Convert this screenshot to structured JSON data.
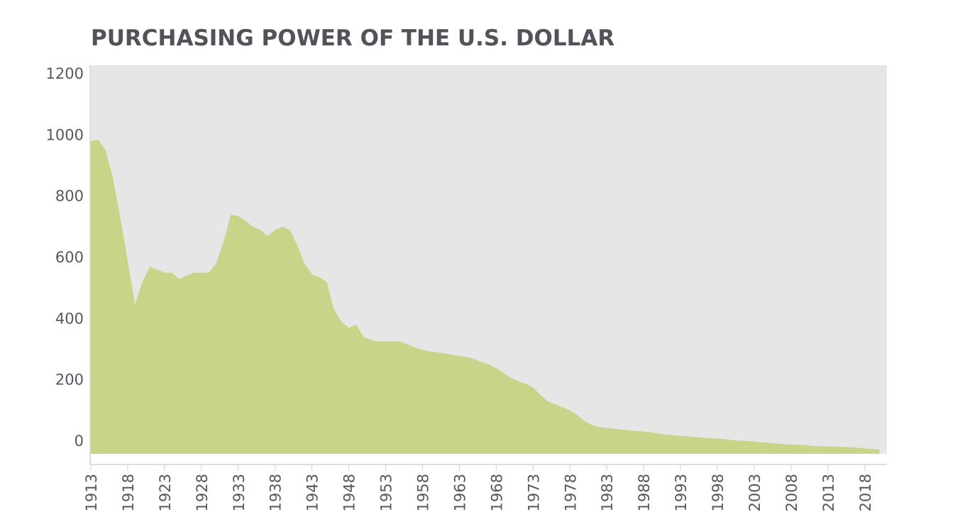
{
  "chart_data": {
    "type": "area",
    "title": "PURCHASING POWER OF THE U.S. DOLLAR",
    "color": "#c8d488",
    "x": [
      1913,
      1914,
      1915,
      1916,
      1917,
      1918,
      1919,
      1920,
      1921,
      1922,
      1923,
      1924,
      1925,
      1926,
      1927,
      1928,
      1929,
      1930,
      1931,
      1932,
      1933,
      1934,
      1935,
      1936,
      1937,
      1938,
      1939,
      1940,
      1941,
      1942,
      1943,
      1944,
      1945,
      1946,
      1947,
      1948,
      1949,
      1950,
      1951,
      1952,
      1953,
      1954,
      1955,
      1956,
      1957,
      1958,
      1959,
      1960,
      1961,
      1962,
      1963,
      1964,
      1965,
      1966,
      1967,
      1968,
      1969,
      1970,
      1971,
      1972,
      1973,
      1974,
      1975,
      1976,
      1977,
      1978,
      1979,
      1980,
      1981,
      1982,
      1983,
      1984,
      1985,
      1986,
      1987,
      1988,
      1989,
      1990,
      1991,
      1992,
      1993,
      1994,
      1995,
      1996,
      1997,
      1998,
      1999,
      2000,
      2001,
      2002,
      2003,
      2004,
      2005,
      2006,
      2007,
      2008,
      2009,
      2010,
      2011,
      2012,
      2013,
      2014,
      2015,
      2016,
      2017,
      2018,
      2019,
      2020
    ],
    "values": [
      980,
      985,
      950,
      860,
      730,
      590,
      445,
      520,
      570,
      560,
      550,
      550,
      530,
      540,
      550,
      550,
      550,
      580,
      650,
      740,
      735,
      720,
      700,
      690,
      670,
      690,
      700,
      690,
      640,
      580,
      545,
      535,
      520,
      430,
      390,
      370,
      380,
      340,
      330,
      325,
      325,
      325,
      325,
      315,
      305,
      298,
      293,
      290,
      286,
      282,
      278,
      274,
      268,
      258,
      250,
      238,
      222,
      206,
      195,
      187,
      175,
      150,
      130,
      120,
      110,
      100,
      85,
      65,
      52,
      45,
      43,
      40,
      37,
      35,
      33,
      31,
      28,
      24,
      21,
      19,
      17,
      15,
      13,
      11,
      9,
      8,
      6,
      3,
      1,
      0,
      -2,
      -4,
      -6,
      -8,
      -10,
      -12,
      -12,
      -14,
      -16,
      -17,
      -18,
      -19,
      -19,
      -20,
      -22,
      -24,
      -26,
      -28
    ],
    "xlim": [
      1913,
      2021
    ],
    "ylim": [
      -42,
      1228
    ],
    "xticks": [
      1913,
      1918,
      1923,
      1928,
      1933,
      1938,
      1943,
      1948,
      1953,
      1958,
      1963,
      1968,
      1973,
      1978,
      1983,
      1988,
      1993,
      1998,
      2003,
      2008,
      2013,
      2018
    ],
    "yticks": [
      0,
      200,
      400,
      600,
      800,
      1000,
      1200
    ]
  }
}
